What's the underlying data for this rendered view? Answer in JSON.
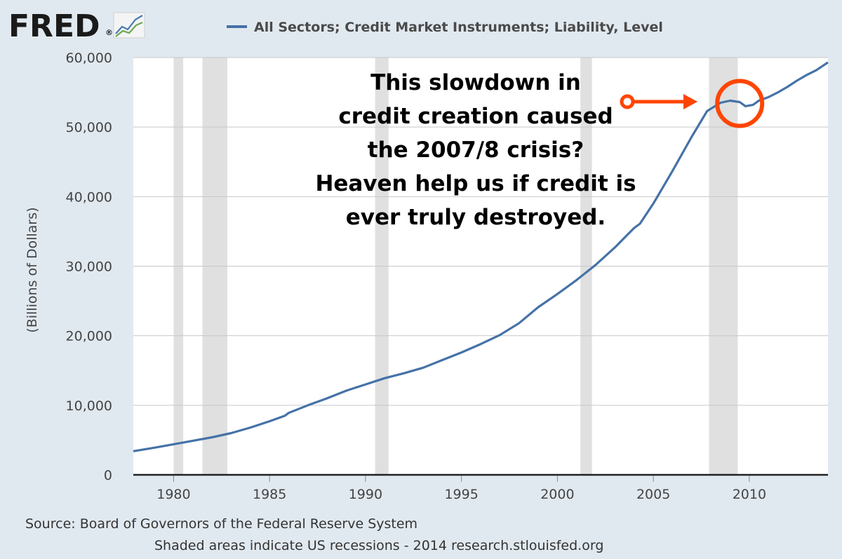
{
  "branding": {
    "logo_text": "FRED",
    "registered_mark": "®",
    "logo_icon": "trend-lines-icon"
  },
  "chart_data": {
    "type": "line",
    "legend": "All Sectors; Credit Market Instruments; Liability, Level",
    "legend_placement": "top",
    "ylabel": "(Billions of Dollars)",
    "ylim": [
      0,
      60000
    ],
    "xlim": [
      1977.9,
      2014.1
    ],
    "yticks": [
      0,
      10000,
      20000,
      30000,
      40000,
      50000,
      60000
    ],
    "ytick_labels": [
      "0",
      "10,000",
      "20,000",
      "30,000",
      "40,000",
      "50,000",
      "60,000"
    ],
    "xticks": [
      1980,
      1985,
      1990,
      1995,
      2000,
      2005,
      2010
    ],
    "xtick_labels": [
      "1980",
      "1985",
      "1990",
      "1995",
      "2000",
      "2005",
      "2010"
    ],
    "grid": "horizontal",
    "line_color": "#4572a7",
    "recession_color": "#e0e0e0",
    "recessions": [
      [
        1980.0,
        1980.5
      ],
      [
        1981.5,
        1982.8
      ],
      [
        1990.5,
        1991.2
      ],
      [
        2001.2,
        2001.8
      ],
      [
        2007.9,
        2009.4
      ]
    ],
    "series": [
      {
        "name": "All Sectors; Credit Market Instruments; Liability, Level",
        "x": [
          1977.9,
          1979,
          1980,
          1981,
          1982,
          1983,
          1984,
          1985,
          1985.8,
          1986,
          1987,
          1988,
          1989,
          1990,
          1991,
          1992,
          1993,
          1994,
          1995,
          1996,
          1997,
          1998,
          1999,
          2000,
          2001,
          2002,
          2003,
          2004,
          2004.3,
          2005,
          2006,
          2007,
          2007.8,
          2008.5,
          2009,
          2009.5,
          2009.8,
          2010.2,
          2010.5,
          2011,
          2011.5,
          2012,
          2012.5,
          2013,
          2013.5,
          2014.1
        ],
        "y": [
          3400,
          3900,
          4400,
          4900,
          5400,
          6000,
          6800,
          7700,
          8500,
          8900,
          10000,
          11000,
          12100,
          13000,
          13900,
          14600,
          15400,
          16500,
          17600,
          18800,
          20100,
          21800,
          24100,
          26000,
          28000,
          30200,
          32700,
          35500,
          36100,
          39000,
          43700,
          48600,
          52300,
          53500,
          53800,
          53600,
          53000,
          53200,
          53800,
          54300,
          55000,
          55800,
          56700,
          57500,
          58200,
          59300
        ]
      }
    ]
  },
  "annotation": {
    "lines": [
      "This slowdown in",
      "credit creation caused",
      "the 2007/8 crisis?",
      "Heaven help us if credit is",
      "ever truly destroyed."
    ],
    "highlight_x": 2009.5,
    "highlight_y": 53400,
    "color": "#ff4500"
  },
  "footer": {
    "source": "Source: Board of Governors of the Federal Reserve System",
    "note": "Shaded areas indicate US recessions - 2014 research.stlouisfed.org"
  }
}
